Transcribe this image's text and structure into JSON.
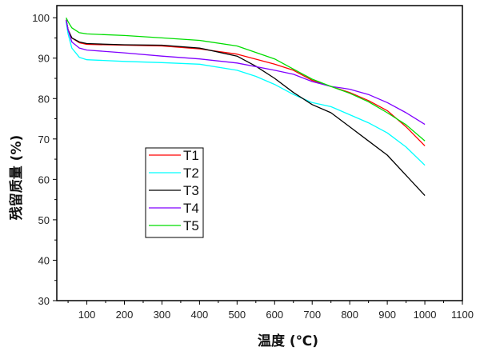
{
  "chart_data": {
    "type": "line",
    "title": "",
    "xlabel": "温度 (℃)",
    "ylabel": "残留质量 (%)",
    "xlim": [
      20,
      1100
    ],
    "ylim": [
      30,
      103
    ],
    "xticks": [
      100,
      200,
      300,
      400,
      500,
      600,
      700,
      800,
      900,
      1000,
      1100
    ],
    "yticks": [
      30,
      40,
      50,
      60,
      70,
      80,
      90,
      100
    ],
    "grid": false,
    "legend_position": "center-left",
    "series": [
      {
        "name": "T1",
        "color": "#ff0000",
        "x": [
          45,
          50,
          60,
          80,
          100,
          200,
          300,
          400,
          500,
          600,
          650,
          700,
          750,
          800,
          850,
          900,
          950,
          1000
        ],
        "y": [
          99.5,
          97,
          95,
          93.8,
          93.4,
          93.2,
          93.0,
          92.3,
          91,
          88.5,
          87,
          84.5,
          83,
          81.5,
          79.5,
          77,
          73,
          68.3
        ]
      },
      {
        "name": "T2",
        "color": "#00ffff",
        "x": [
          45,
          50,
          60,
          80,
          100,
          200,
          300,
          400,
          500,
          550,
          600,
          650,
          700,
          750,
          800,
          850,
          900,
          950,
          1000
        ],
        "y": [
          99,
          96,
          92.5,
          90.2,
          89.6,
          89.2,
          88.9,
          88.5,
          87,
          85.5,
          83.5,
          81,
          79,
          78,
          76,
          74,
          71.5,
          68,
          63.5
        ]
      },
      {
        "name": "T3",
        "color": "#000000",
        "x": [
          45,
          50,
          60,
          80,
          100,
          200,
          300,
          400,
          500,
          550,
          600,
          650,
          700,
          750,
          800,
          850,
          900,
          950,
          1000
        ],
        "y": [
          99.5,
          97,
          95,
          94,
          93.6,
          93.3,
          93.2,
          92.5,
          90.5,
          88,
          85,
          81.5,
          78.5,
          76.5,
          73,
          69.5,
          66,
          61,
          56
        ]
      },
      {
        "name": "T4",
        "color": "#8000ff",
        "x": [
          45,
          50,
          60,
          80,
          100,
          200,
          300,
          400,
          500,
          600,
          650,
          700,
          750,
          780,
          800,
          850,
          900,
          950,
          1000
        ],
        "y": [
          99.5,
          97,
          94,
          92.5,
          92,
          91.3,
          90.5,
          89.8,
          88.8,
          87,
          86,
          84.2,
          83,
          82.6,
          82.3,
          81,
          79,
          76.5,
          73.6
        ]
      },
      {
        "name": "T5",
        "color": "#00dd00",
        "x": [
          45,
          50,
          60,
          80,
          100,
          200,
          300,
          400,
          500,
          600,
          650,
          700,
          750,
          800,
          850,
          900,
          950,
          1000
        ],
        "y": [
          100,
          99,
          97.5,
          96.3,
          96,
          95.6,
          95,
          94.4,
          93,
          89.8,
          87.3,
          84.8,
          83,
          81.3,
          79.2,
          76.5,
          73.5,
          69.5
        ]
      }
    ]
  }
}
